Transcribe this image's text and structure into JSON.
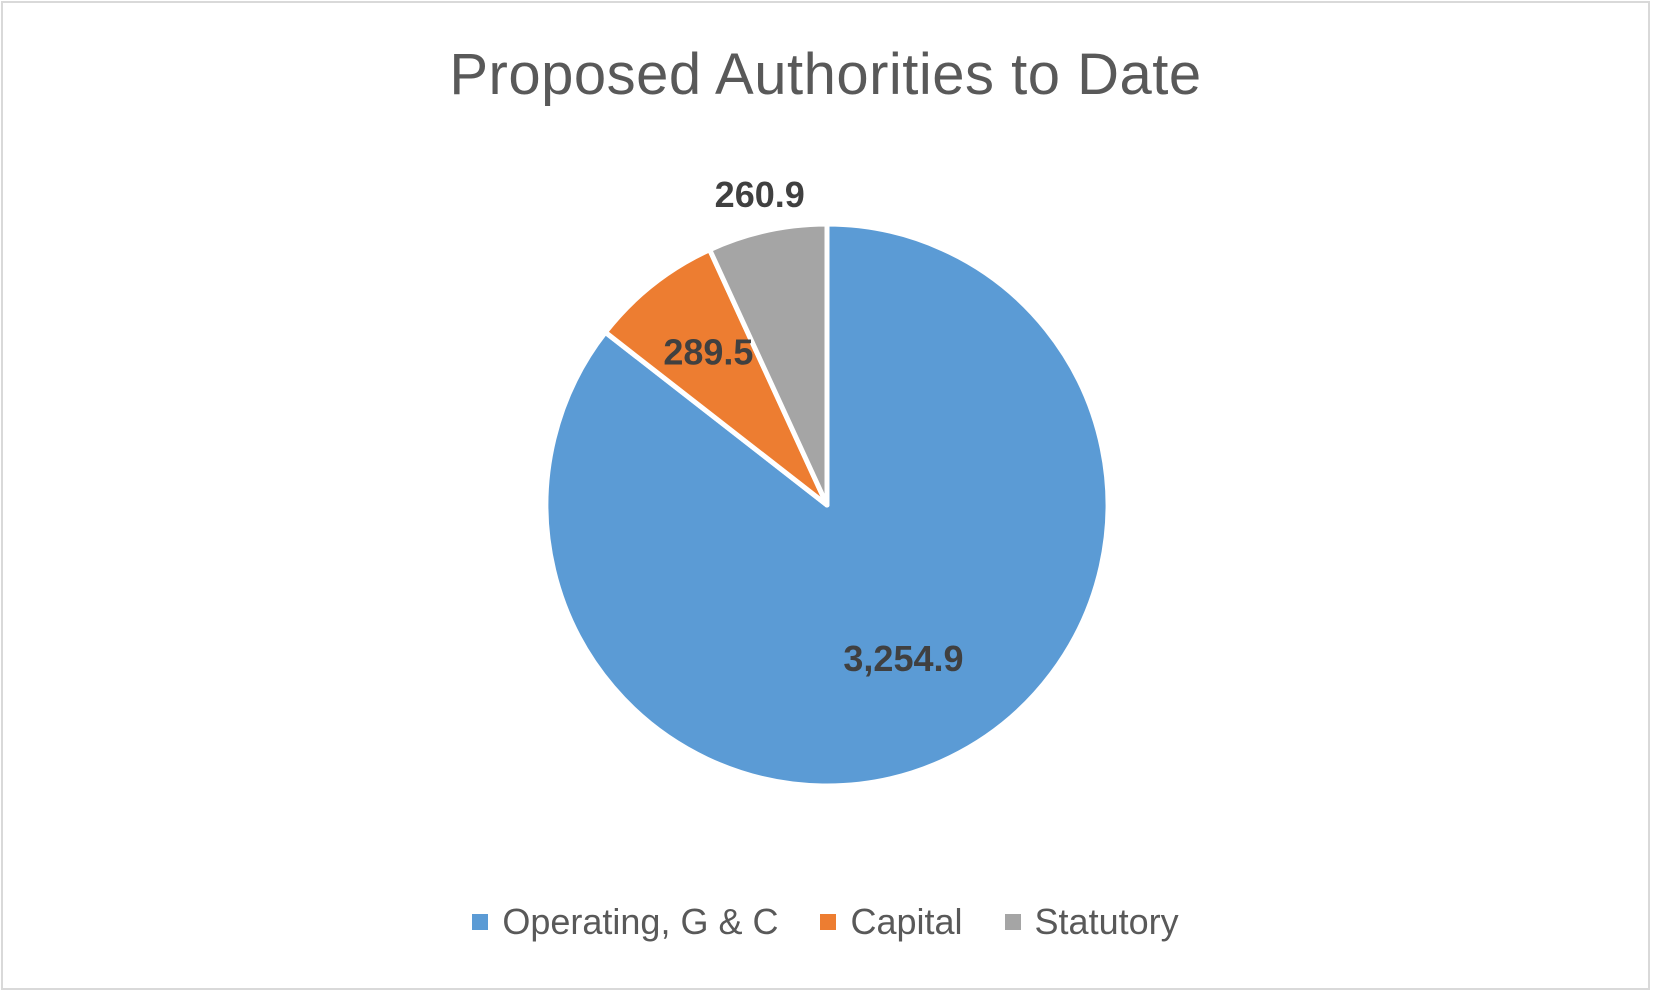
{
  "chart_data": {
    "type": "pie",
    "title": "Proposed Authorities to Date",
    "categories": [
      "Operating, G & C",
      "Capital",
      "Statutory"
    ],
    "values": [
      3254.9,
      289.5,
      260.9
    ],
    "value_labels": [
      "3,254.9",
      "289.5",
      "260.9"
    ],
    "colors": [
      "#5b9bd5",
      "#ed7d31",
      "#a5a5a5"
    ],
    "start_angle": "12 o'clock",
    "direction": "clockwise",
    "legend_position": "bottom"
  }
}
